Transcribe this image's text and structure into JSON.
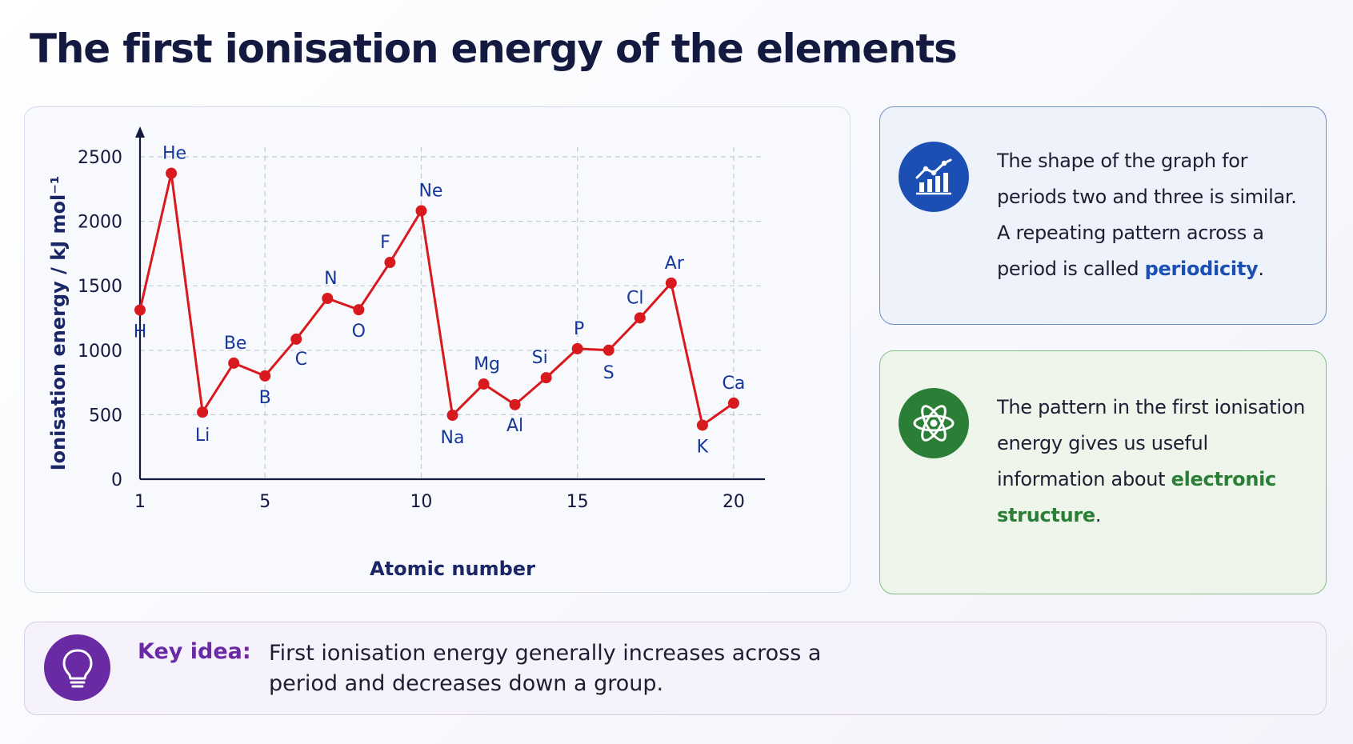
{
  "page": {
    "title": "The first ionisation energy of the elements"
  },
  "chart_data": {
    "type": "line",
    "xlabel": "Atomic number",
    "ylabel": "Ionisation energy / kJ mol⁻¹",
    "xlim": [
      1,
      21
    ],
    "ylim": [
      0,
      2500
    ],
    "xticks": [
      1,
      5,
      10,
      15,
      20
    ],
    "yticks": [
      0,
      500,
      1000,
      1500,
      2000,
      2500
    ],
    "grid": "dashed, vertical at 5, 10, 15, 20 and horizontal at each y tick",
    "color": "#d8191e",
    "label_color": "#15379a",
    "x": [
      1,
      2,
      3,
      4,
      5,
      6,
      7,
      8,
      9,
      10,
      11,
      12,
      13,
      14,
      15,
      16,
      17,
      18,
      19,
      20
    ],
    "values": [
      1312,
      2372,
      520,
      900,
      801,
      1086,
      1402,
      1314,
      1681,
      2081,
      496,
      738,
      578,
      787,
      1012,
      1000,
      1251,
      1521,
      419,
      590
    ],
    "point_labels": [
      "H",
      "He",
      "Li",
      "Be",
      "B",
      "C",
      "N",
      "O",
      "F",
      "Ne",
      "Na",
      "Mg",
      "Al",
      "Si",
      "P",
      "S",
      "Cl",
      "Ar",
      "K",
      "Ca"
    ]
  },
  "notes": {
    "periodicity": {
      "icon": "bar-chart-trend-icon",
      "color": "#1b4fb4",
      "text_before": "The shape of the graph for periods two and three is similar. A repeating pattern across a period is called ",
      "highlight": "periodicity",
      "text_after": "."
    },
    "structure": {
      "icon": "atom-icon",
      "color": "#2a7e36",
      "text_before": "The pattern in the first ionisation energy gives us useful information about ",
      "highlight": "electronic structure",
      "text_after": "."
    }
  },
  "key_idea": {
    "icon": "lightbulb-icon",
    "color": "#6a2aa3",
    "label": "Key idea:",
    "text": "First ionisation energy generally increases across a period and decreases down a group."
  }
}
